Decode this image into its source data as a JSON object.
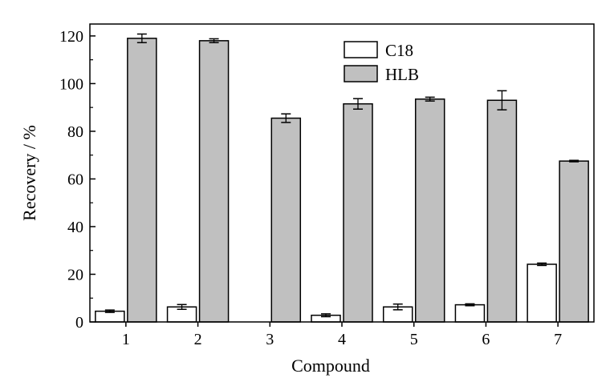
{
  "chart_data": {
    "type": "bar",
    "xlabel": "Compound",
    "ylabel": "Recovery / %",
    "categories": [
      "1",
      "2",
      "3",
      "4",
      "5",
      "6",
      "7"
    ],
    "ylim": [
      0,
      125
    ],
    "yticks": [
      0,
      20,
      40,
      60,
      80,
      100,
      120
    ],
    "legend_position": "top-center",
    "grid": false,
    "series": [
      {
        "name": "C18",
        "color": "#ffffff",
        "values": [
          4.5,
          6.3,
          0,
          2.8,
          6.3,
          7.2,
          24.2
        ],
        "errors": [
          0.5,
          1.0,
          0,
          0.6,
          1.2,
          0.4,
          0.5
        ]
      },
      {
        "name": "HLB",
        "color": "#c0c0c0",
        "values": [
          119.0,
          118.0,
          85.5,
          91.5,
          93.5,
          93.0,
          67.5
        ],
        "errors": [
          1.8,
          0.8,
          1.8,
          2.2,
          0.8,
          4.0,
          0.3
        ]
      }
    ]
  }
}
